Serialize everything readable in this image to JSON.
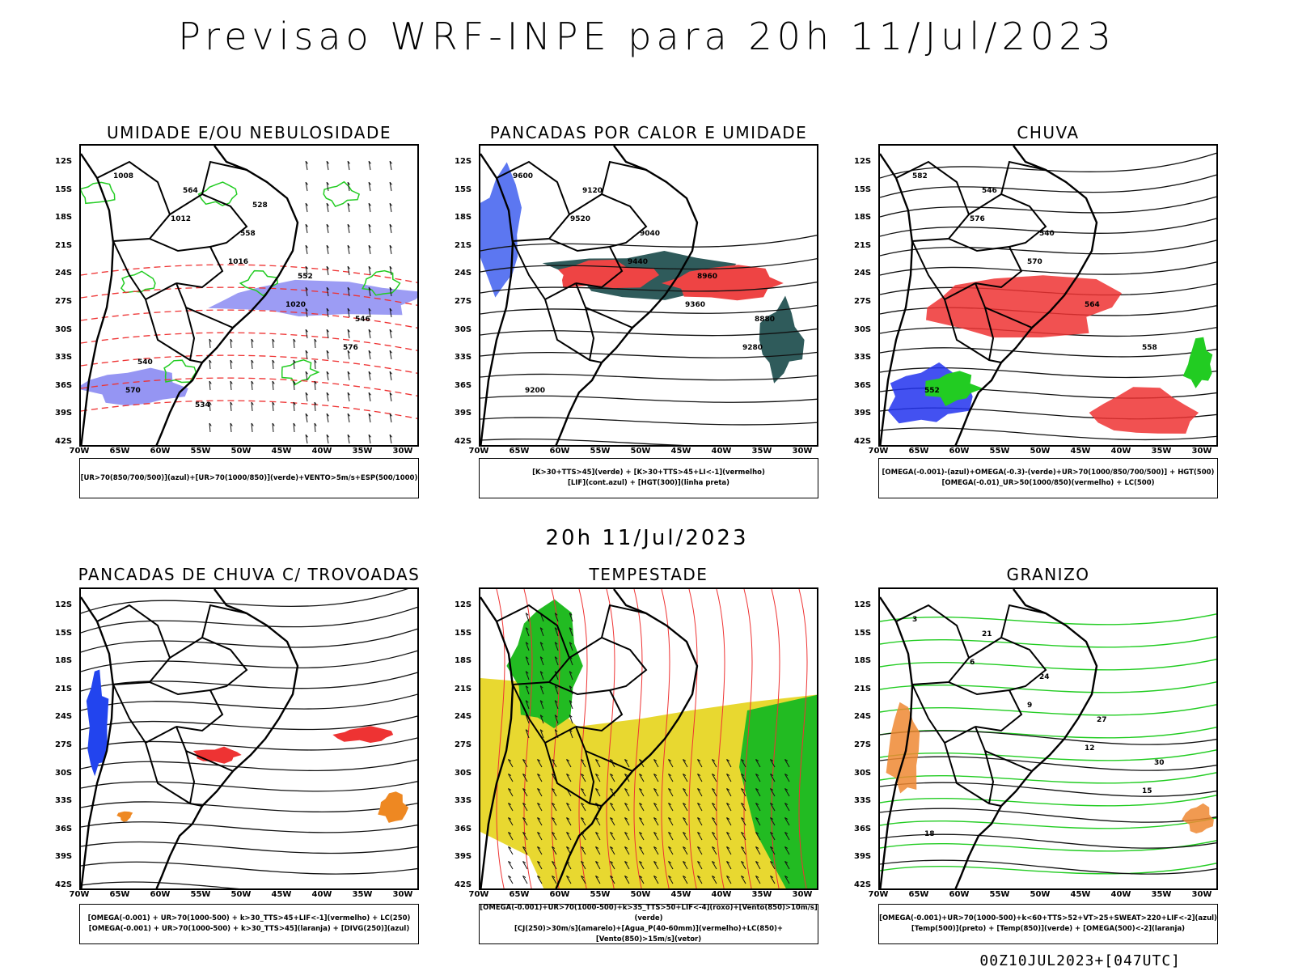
{
  "header": {
    "title": "Previsao WRF-INPE  para 20h 11/Jul/2023"
  },
  "mid": {
    "title": "20h 11/Jul/2023"
  },
  "footer": {
    "run": "00Z10JUL2023+[047UTC]"
  },
  "axes": {
    "lat_labels": [
      "12S",
      "15S",
      "18S",
      "21S",
      "24S",
      "27S",
      "30S",
      "33S",
      "36S",
      "39S",
      "42S"
    ],
    "lon_labels": [
      "70W",
      "65W",
      "60W",
      "55W",
      "50W",
      "45W",
      "40W",
      "35W",
      "30W"
    ]
  },
  "panels": [
    {
      "id": "umidade",
      "title": "UMIDADE E/OU NEBULOSIDADE",
      "legend": [
        "[UR>70(850/700/500)](azul)+[UR>70(1000/850)](verde)+VENTO>5m/s+ESP(500/1000)"
      ],
      "colors": {
        "primary": "#7b7bf0",
        "secondary": "#22cc22",
        "contour": "#ee3333"
      },
      "labels": [
        "1008",
        "1012",
        "1016",
        "1020",
        "576",
        "570",
        "564",
        "558",
        "552",
        "546",
        "540",
        "534",
        "528"
      ]
    },
    {
      "id": "pancadas-calor",
      "title": "PANCADAS POR CALOR E UMIDADE",
      "legend": [
        "[K>30+TTS>45](verde) + [K>30+TTS>45+LI<-1](vermelho)",
        "[LIF](cont.azul) + [HGT(300)](linha preta)"
      ],
      "colors": {
        "primary": "#2f5b5b",
        "secondary": "#ee4444",
        "contour": "#3355ee"
      },
      "labels": [
        "9600",
        "9520",
        "9440",
        "9360",
        "9280",
        "9200",
        "9120",
        "9040",
        "8960",
        "8880"
      ]
    },
    {
      "id": "chuva",
      "title": "CHUVA",
      "legend": [
        "[OMEGA(-0.001)-(azul)+OMEGA(-0.3)-(verde)+UR>70(1000/850/700/500)] + HGT(500)",
        "[OMEGA(-0.01)_UR>50(1000/850)(vermelho) + LC(500)"
      ],
      "colors": {
        "primary": "#ee3333",
        "secondary": "#22cc22",
        "contour": "#2233ee"
      },
      "labels": [
        "582",
        "576",
        "570",
        "564",
        "558",
        "552",
        "546",
        "540"
      ]
    },
    {
      "id": "trovoadas",
      "title": "PANCADAS DE CHUVA C/ TROVOADAS",
      "legend": [
        "[OMEGA(-0.001) + UR>70(1000-500) + k>30_TTS>45+LIF<-1](vermelho) + LC(250)",
        "[OMEGA(-0.001) + UR>70(1000-500) + k>30_TTS>45](laranja) + [DIVG(250)](azul)"
      ],
      "colors": {
        "primary": "#ee3333",
        "secondary": "#ee8822",
        "contour": "#2244ee"
      },
      "labels": []
    },
    {
      "id": "tempestade",
      "title": "TEMPESTADE",
      "legend": [
        "[OMEGA(-0.001)+UR>70(1000-500)+k>35_TTS>50+LIF<-4](roxo)+[Vento(850)>10m/s](verde)",
        "[CJ(250)>30m/s](amarelo)+[Agua_P(40-60mm)](vermelho)+LC(850)+[Vento(850)>15m/s](vetor)"
      ],
      "colors": {
        "primary": "#e8d830",
        "secondary": "#22bb22",
        "contour": "#ee3333"
      },
      "labels": []
    },
    {
      "id": "granizo",
      "title": "GRANIZO",
      "legend": [
        "[OMEGA(-0.001)+UR>70(1000-500)+k<60+TTS>52+VT>25+SWEAT>220+LIF<-2](azul)",
        "[Temp(500)](preto) + [Temp(850)](verde) + [OMEGA(500)<-2](laranja)"
      ],
      "colors": {
        "primary": "#ee8833",
        "secondary": "#22cc22",
        "contour": "#111111"
      },
      "labels": [
        "3",
        "6",
        "9",
        "12",
        "15",
        "18",
        "21",
        "24",
        "27",
        "30"
      ]
    }
  ]
}
